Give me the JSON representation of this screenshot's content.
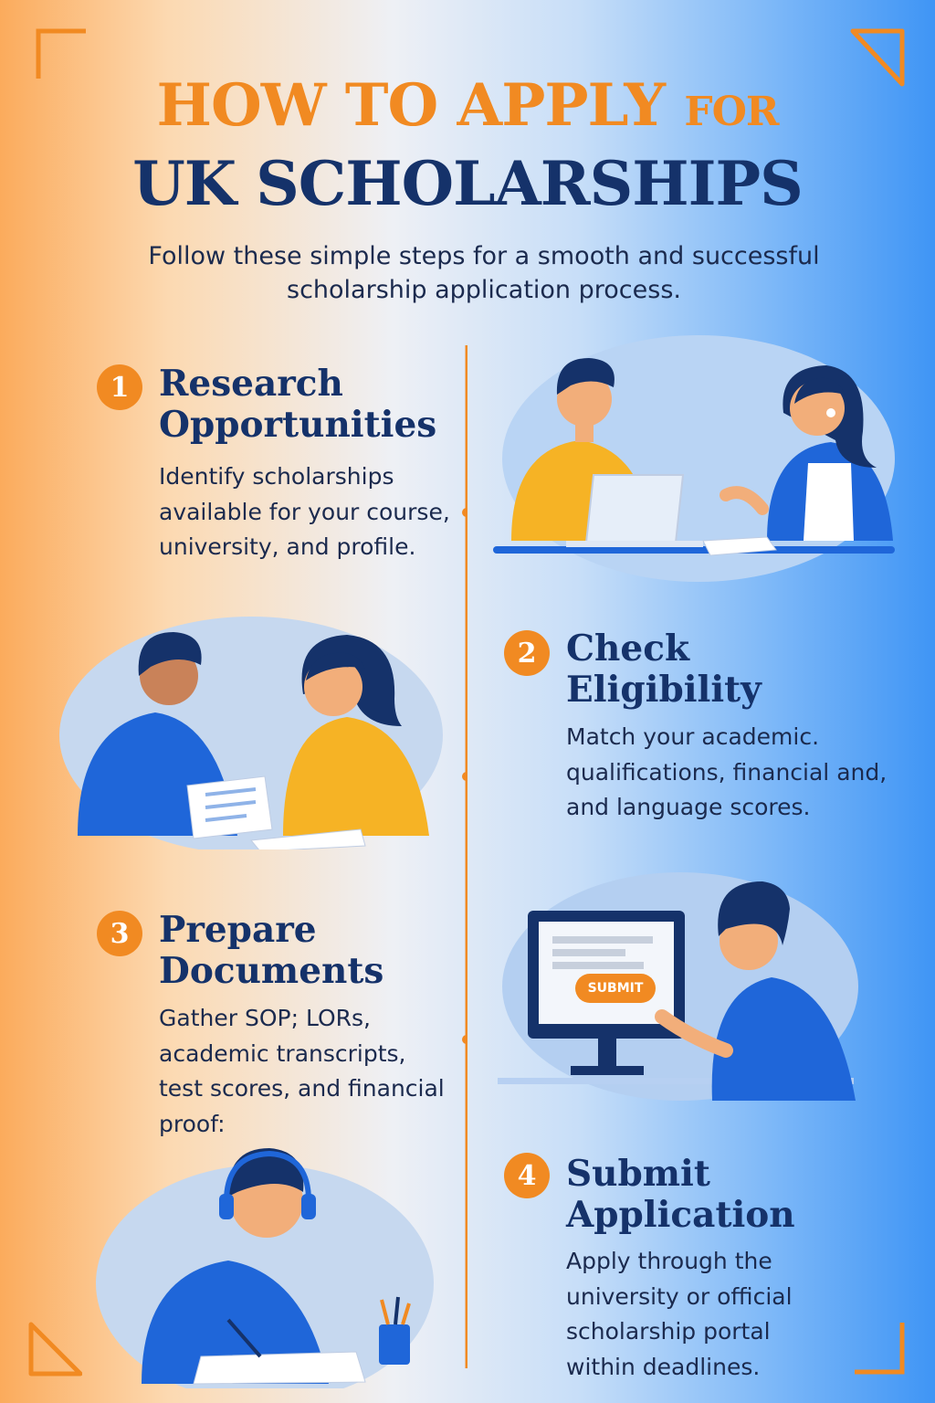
{
  "title": {
    "line1_main": "HOW TO APPLY",
    "line1_small": "FOR",
    "line2": "UK SCHOLARSHIPS"
  },
  "intro": {
    "line1": "Follow these simple steps for a smooth and successful",
    "line2": "scholarship application process."
  },
  "steps": [
    {
      "number": "1",
      "title_line1": "Research",
      "title_line2": "Opportunities",
      "desc": [
        "Identify scholarships",
        "available for your course,",
        "university, and profile."
      ]
    },
    {
      "number": "2",
      "title_line1": "Check",
      "title_line2": "Eligibility",
      "desc": [
        "Match your academic.",
        "qualifications, financial and,",
        "and language scores."
      ]
    },
    {
      "number": "3",
      "title_line1": "Prepare",
      "title_line2": "Documents",
      "desc": [
        "Gather SOP; LORs,",
        "academic transcripts,",
        "test scores, and financial",
        "proof:"
      ]
    },
    {
      "number": "4",
      "title_line1": "Submit",
      "title_line2": "Application",
      "desc": [
        "Apply through the",
        "university or official",
        "scholarship portal",
        "within deadlines."
      ]
    }
  ],
  "illustrations": {
    "submit_button_label": "SUBMIT"
  },
  "colors": {
    "orange": "#f18a22",
    "navy": "#15326a",
    "blue": "#1f66d9",
    "yellow": "#f6b325"
  }
}
